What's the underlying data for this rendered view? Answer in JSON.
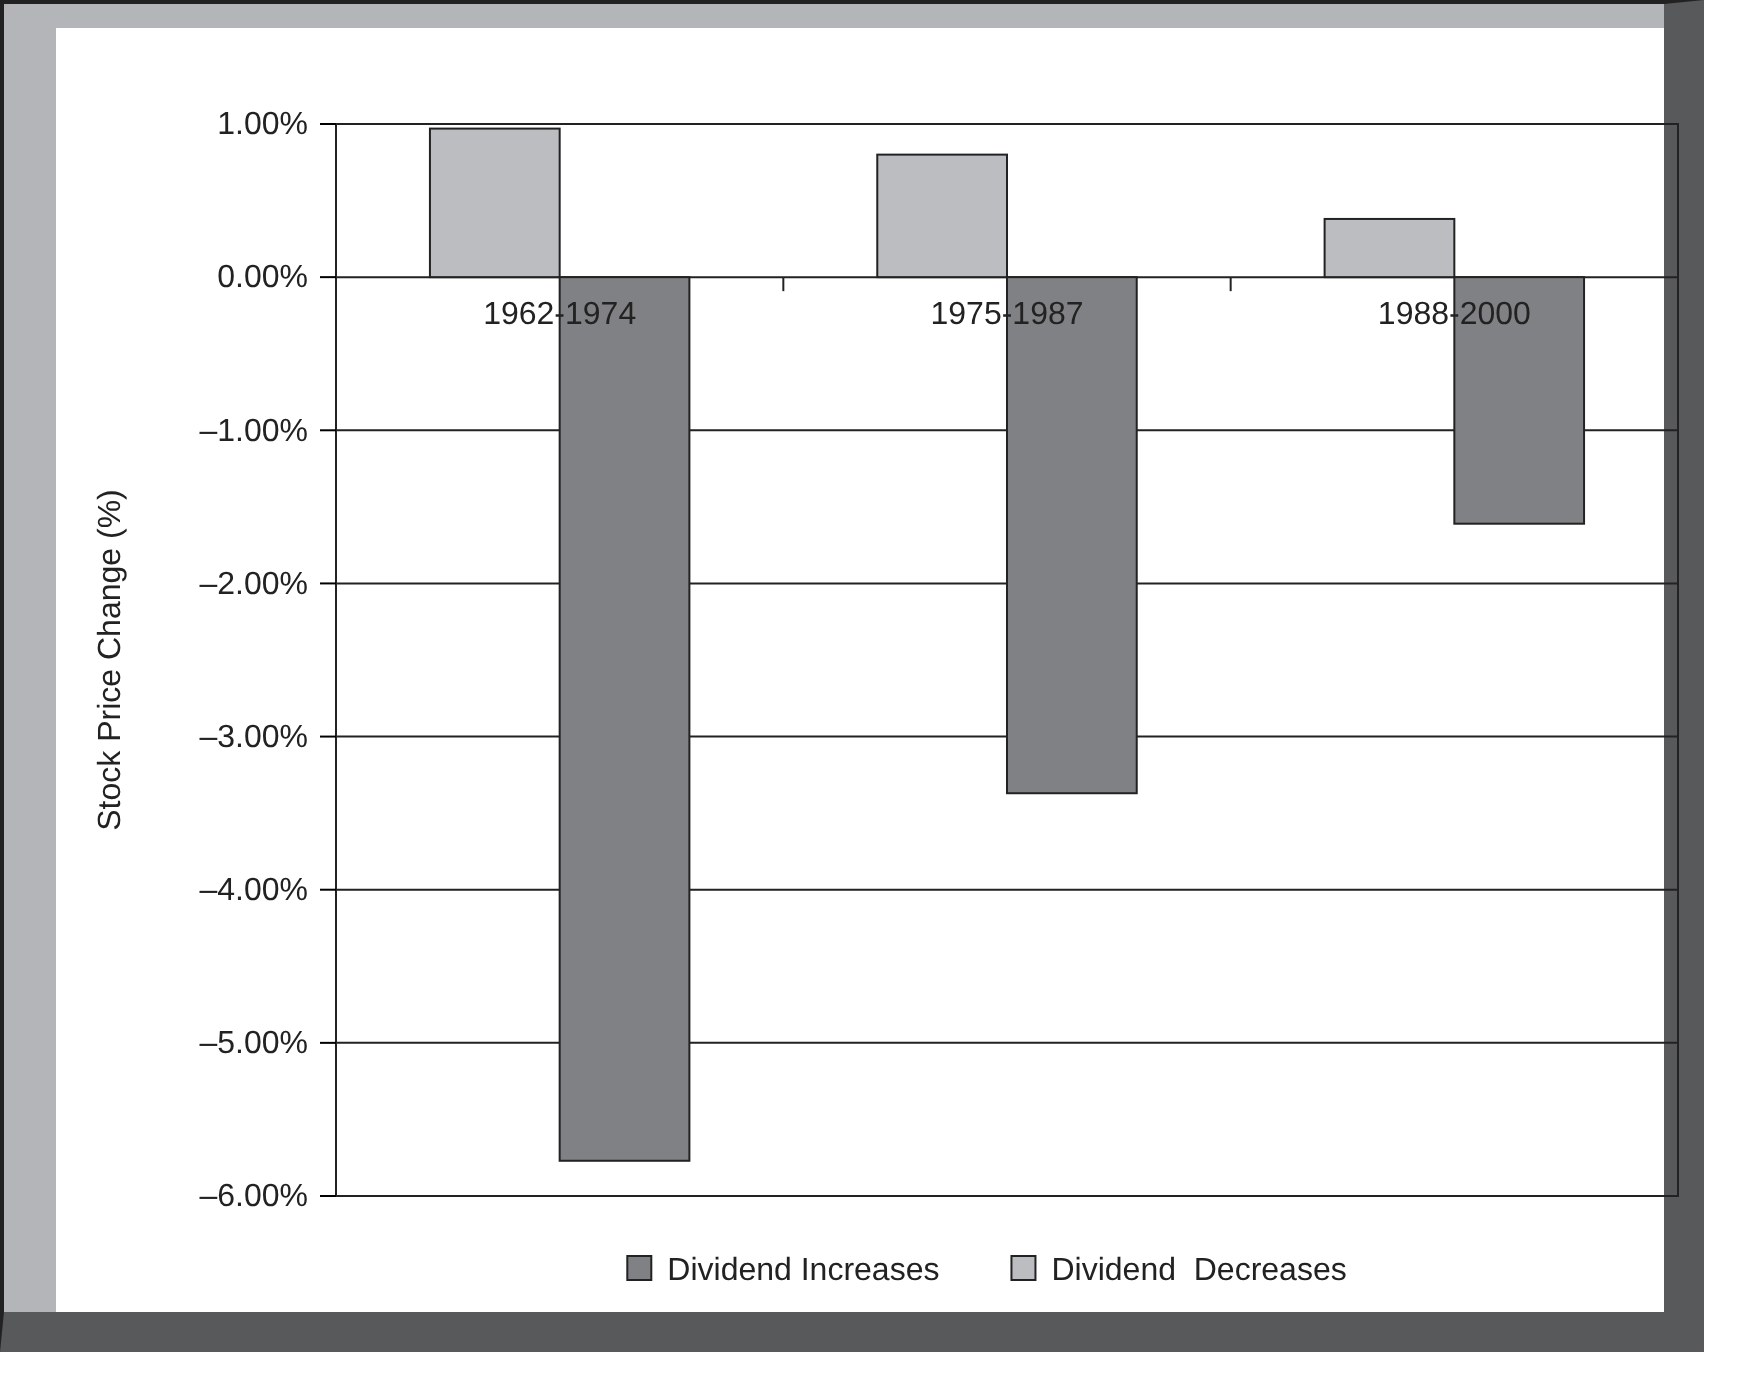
{
  "chart_data": {
    "type": "bar",
    "ylabel": "Stock Price Change (%)",
    "categories": [
      "1962-1974",
      "1975-1987",
      "1988-2000"
    ],
    "series": [
      {
        "name": "Dividend  Decreases",
        "color": "#bcbdc0",
        "values": [
          0.97,
          0.8,
          0.38
        ]
      },
      {
        "name": "Dividend Increases",
        "color": "#808184",
        "values": [
          -5.77,
          -3.37,
          -1.61
        ]
      }
    ],
    "ylim": [
      -6,
      1
    ],
    "yticks": [
      {
        "value": -6,
        "label": "–6.00%"
      },
      {
        "value": -5,
        "label": "–5.00%"
      },
      {
        "value": -4,
        "label": "–4.00%"
      },
      {
        "value": -3,
        "label": "–3.00%"
      },
      {
        "value": -2,
        "label": "–2.00%"
      },
      {
        "value": -1,
        "label": "–1.00%"
      },
      {
        "value": 0,
        "label": "0.00%"
      },
      {
        "value": 1,
        "label": "1.00%"
      }
    ],
    "grid": "y",
    "legend": "bottom"
  }
}
